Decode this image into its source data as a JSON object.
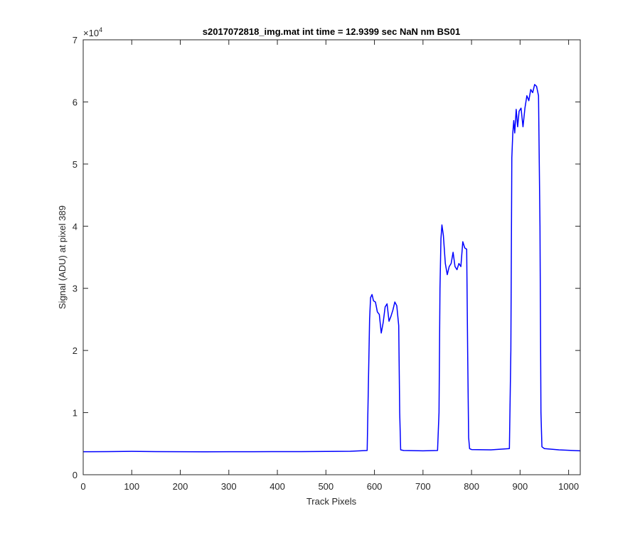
{
  "chart_data": {
    "type": "line",
    "title": "s2017072818_img.mat int time = 12.9399 sec  NaN nm BS01",
    "xlabel": "Track Pixels",
    "ylabel": "Signal (ADU) at pixel 389",
    "xlim": [
      0,
      1024
    ],
    "ylim": [
      0,
      70000
    ],
    "x_ticks": [
      0,
      100,
      200,
      300,
      400,
      500,
      600,
      700,
      800,
      900,
      1000
    ],
    "y_ticks": [
      0,
      1,
      2,
      3,
      4,
      5,
      6,
      7
    ],
    "y_multiplier_base": "×10",
    "y_multiplier_exp": "4",
    "grid": false,
    "line_color": "#0000ff",
    "series": [
      {
        "x": [
          0,
          50,
          100,
          150,
          200,
          250,
          300,
          350,
          400,
          450,
          500,
          550,
          585,
          590,
          592,
          595,
          598,
          602,
          606,
          610,
          614,
          618,
          622,
          626,
          630,
          634,
          638,
          642,
          646,
          650,
          652,
          654,
          660,
          700,
          730,
          733,
          735,
          737,
          739,
          742,
          746,
          750,
          754,
          758,
          762,
          766,
          770,
          774,
          778,
          782,
          786,
          790,
          792,
          794,
          796,
          800,
          840,
          878,
          881,
          883,
          885,
          887,
          889,
          892,
          895,
          898,
          902,
          906,
          910,
          914,
          918,
          922,
          926,
          930,
          934,
          938,
          941,
          943,
          945,
          950,
          980,
          1024
        ],
        "y": [
          3700,
          3720,
          3760,
          3720,
          3700,
          3690,
          3700,
          3700,
          3720,
          3720,
          3740,
          3780,
          3900,
          25000,
          28500,
          29000,
          28000,
          27800,
          26200,
          25800,
          22800,
          24500,
          27000,
          27500,
          24700,
          25500,
          26500,
          27800,
          27200,
          24000,
          10000,
          4000,
          3900,
          3850,
          3900,
          10000,
          30000,
          38000,
          40200,
          38500,
          34000,
          32200,
          33500,
          34000,
          35800,
          33500,
          33000,
          34000,
          33500,
          37500,
          36500,
          36300,
          20000,
          6000,
          4200,
          4050,
          4000,
          4200,
          20000,
          51000,
          55000,
          57000,
          55000,
          58800,
          56000,
          58500,
          59000,
          56000,
          59000,
          61000,
          60200,
          62000,
          61500,
          62800,
          62500,
          61000,
          40000,
          10000,
          4500,
          4200,
          4000,
          3850
        ]
      }
    ]
  }
}
